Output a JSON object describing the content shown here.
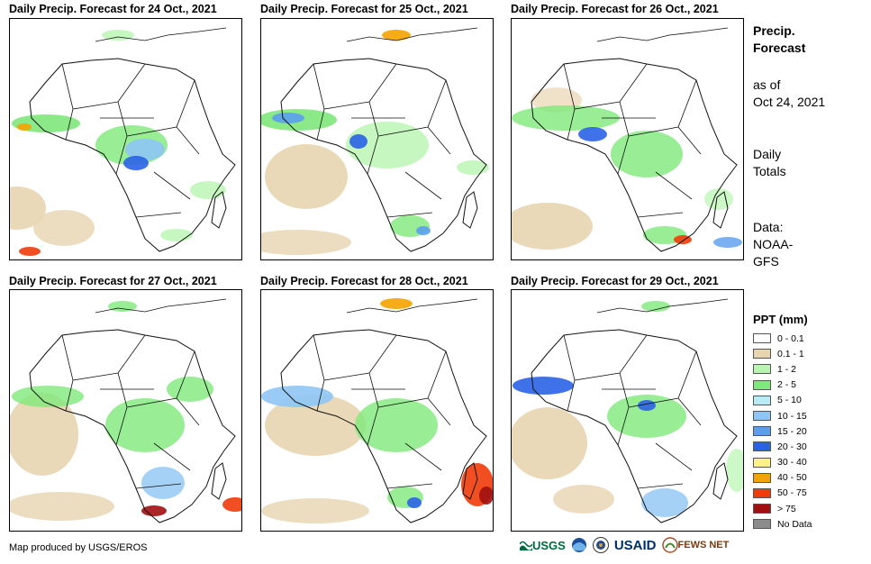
{
  "panels": [
    {
      "title": "Daily Precip. Forecast for 24 Oct., 2021"
    },
    {
      "title": "Daily Precip. Forecast for 25 Oct., 2021"
    },
    {
      "title": "Daily Precip. Forecast for 26 Oct., 2021"
    },
    {
      "title": "Daily Precip. Forecast for 27 Oct., 2021"
    },
    {
      "title": "Daily Precip. Forecast for 28 Oct., 2021"
    },
    {
      "title": "Daily Precip. Forecast for 29 Oct., 2021"
    }
  ],
  "info": {
    "heading_line1": "Precip.",
    "heading_line2": "Forecast",
    "asof_line1": "as of",
    "asof_line2": "Oct 24, 2021",
    "totals_line1": "Daily",
    "totals_line2": "Totals",
    "data_line1": "Data:",
    "data_line2": "NOAA-",
    "data_line3": "GFS"
  },
  "legend": {
    "title": "PPT (mm)",
    "items": [
      {
        "label": "0 - 0.1",
        "color": "#ffffff"
      },
      {
        "label": "0.1 - 1",
        "color": "#e8d5b0"
      },
      {
        "label": "1 - 2",
        "color": "#b8f5b0"
      },
      {
        "label": "2 - 5",
        "color": "#7ee87a"
      },
      {
        "label": "5 - 10",
        "color": "#b8ecf5"
      },
      {
        "label": "10 - 15",
        "color": "#8ec5f5"
      },
      {
        "label": "15 - 20",
        "color": "#5a9ef0"
      },
      {
        "label": "20 - 30",
        "color": "#2a62e6"
      },
      {
        "label": "30 - 40",
        "color": "#fff08a"
      },
      {
        "label": "40 - 50",
        "color": "#f5a300"
      },
      {
        "label": "50 - 75",
        "color": "#f03c0a"
      },
      {
        "label": "> 75",
        "color": "#a01010"
      },
      {
        "label": "No Data",
        "color": "#8c8c8c"
      }
    ]
  },
  "footer": {
    "credit": "Map produced by USGS/EROS"
  },
  "logos": {
    "usgs": "USGS",
    "usaid": "USAID",
    "fewsnet": "FEWS NET"
  }
}
